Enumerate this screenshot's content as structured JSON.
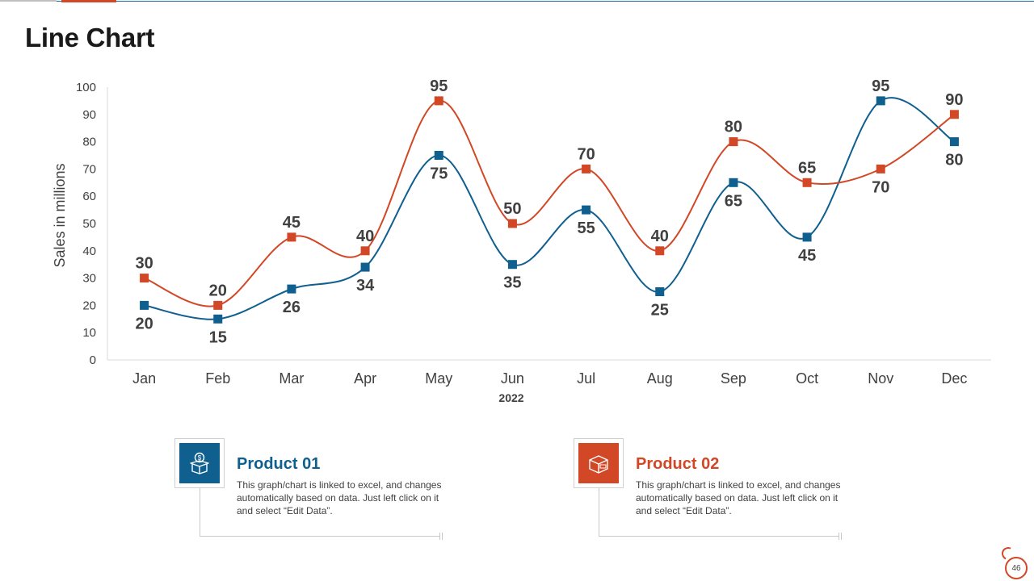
{
  "page": {
    "title": "Line Chart",
    "slide_number": "46"
  },
  "chart_data": {
    "type": "line",
    "categories": [
      "Jan",
      "Feb",
      "Mar",
      "Apr",
      "May",
      "Jun",
      "Jul",
      "Aug",
      "Sep",
      "Oct",
      "Nov",
      "Dec"
    ],
    "series": [
      {
        "name": "Product 01",
        "color": "#0f5f8f",
        "values": [
          20,
          15,
          26,
          34,
          75,
          35,
          55,
          25,
          65,
          45,
          95,
          80
        ]
      },
      {
        "name": "Product 02",
        "color": "#d24726",
        "values": [
          30,
          20,
          45,
          40,
          95,
          50,
          70,
          40,
          80,
          65,
          70,
          90
        ]
      }
    ],
    "xlabel": "2022",
    "ylabel": "Sales in millions",
    "ylim": [
      0,
      100
    ],
    "yticks": [
      0,
      10,
      20,
      30,
      40,
      50,
      60,
      70,
      80,
      90,
      100
    ],
    "grid": false,
    "smooth": true,
    "marker": "square",
    "data_labels": true
  },
  "legend": [
    {
      "title": "Product 01",
      "color": "#0f5f8f",
      "icon": "money-box-icon",
      "description": "This graph/chart is linked to excel, and changes automatically based on data. Just left click on it and select “Edit Data”."
    },
    {
      "title": "Product 02",
      "color": "#d24726",
      "icon": "package-box-icon",
      "description": "This graph/chart is linked to excel, and changes automatically based on data. Just left click on it and select “Edit Data”."
    }
  ]
}
